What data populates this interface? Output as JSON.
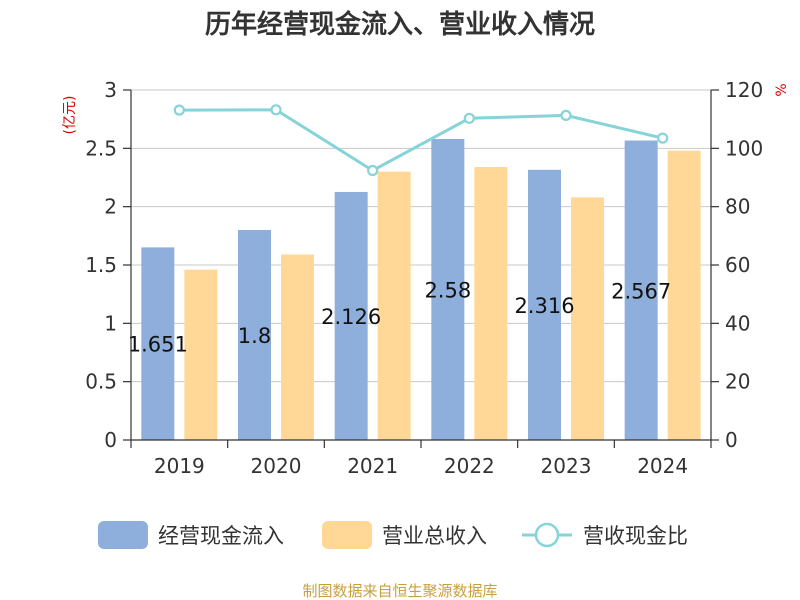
{
  "chart_data": {
    "type": "bar",
    "title": "历年经营现金流入、营业收入情况",
    "categories": [
      "2019",
      "2020",
      "2021",
      "2022",
      "2023",
      "2024"
    ],
    "y_left": {
      "unit_label": "(亿元)",
      "range": [
        0,
        3
      ],
      "ticks": [
        "0",
        "0.5",
        "1",
        "1.5",
        "2",
        "2.5",
        "3"
      ]
    },
    "y_right": {
      "unit_label": "%",
      "range": [
        0,
        120
      ],
      "ticks": [
        "0",
        "20",
        "40",
        "60",
        "80",
        "100",
        "120"
      ]
    },
    "series": [
      {
        "name": "经营现金流入",
        "kind": "bar",
        "axis": "left",
        "color": "#8eaedb",
        "values": [
          1.651,
          1.8,
          2.126,
          2.58,
          2.316,
          2.567
        ],
        "labels": [
          "1.651",
          "1.8",
          "2.126",
          "2.58",
          "2.316",
          "2.567"
        ]
      },
      {
        "name": "营业总收入",
        "kind": "bar",
        "axis": "left",
        "color": "#ffd898",
        "values": [
          1.46,
          1.59,
          2.3,
          2.34,
          2.08,
          2.48
        ]
      },
      {
        "name": "营收现金比",
        "kind": "line",
        "axis": "right",
        "color": "#86d4d8",
        "values": [
          113.1,
          113.2,
          92.4,
          110.3,
          111.3,
          103.5
        ]
      }
    ],
    "grid": true,
    "legend_position": "bottom"
  },
  "footer": {
    "source": "制图数据来自恒生聚源数据库"
  }
}
